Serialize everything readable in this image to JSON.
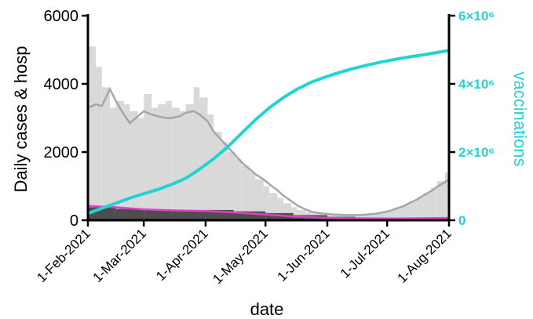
{
  "chart_data": {
    "type": "bar",
    "xlabel": "date",
    "ylabel": "Daily cases & hosp",
    "y2label": "vaccinations",
    "x_start": "2021-02-01",
    "x_end": "2021-08-01",
    "xtick_labels": [
      "1-Feb-2021",
      "1-Mar-2021",
      "1-Apr-2021",
      "1-May-2021",
      "1-Jun-2021",
      "1-Jul-2021",
      "1-Aug-2021"
    ],
    "xtick_dates": [
      "2021-02-01",
      "2021-03-01",
      "2021-04-01",
      "2021-05-01",
      "2021-06-01",
      "2021-07-01",
      "2021-08-01"
    ],
    "ylim": [
      0,
      6000
    ],
    "yticks": [
      0,
      2000,
      4000,
      6000
    ],
    "ytick_labels": [
      "0",
      "2000",
      "4000",
      "6000"
    ],
    "y2lim": [
      0,
      6000000
    ],
    "y2ticks": [
      0,
      2000000,
      4000000,
      6000000
    ],
    "y2tick_labels": [
      "0",
      "2×10⁶",
      "4×10⁶",
      "6×10⁶"
    ],
    "grid": false,
    "colors": {
      "cases_bars": "#d9d9d9",
      "cases_avg": "#a6a6a6",
      "hosp_bars": "#4d4d4d",
      "hosp_line": "#e040c8",
      "vaccinations": "#22d3d3",
      "axis": "#000000"
    },
    "series": [
      {
        "kind": "bars",
        "axis": "left",
        "x": [
          "2021-02-01",
          "2021-02-05",
          "2021-02-08",
          "2021-02-12",
          "2021-02-15",
          "2021-02-19",
          "2021-02-22",
          "2021-02-26",
          "2021-03-01",
          "2021-03-05",
          "2021-03-08",
          "2021-03-12",
          "2021-03-15",
          "2021-03-19",
          "2021-03-22",
          "2021-03-26",
          "2021-03-29",
          "2021-04-02",
          "2021-04-05",
          "2021-04-09",
          "2021-04-12",
          "2021-04-16",
          "2021-04-19",
          "2021-04-23",
          "2021-04-26",
          "2021-04-30",
          "2021-05-03",
          "2021-05-07",
          "2021-05-10",
          "2021-05-14",
          "2021-05-17",
          "2021-05-21",
          "2021-05-24",
          "2021-05-28",
          "2021-05-31",
          "2021-06-04",
          "2021-06-07",
          "2021-06-11",
          "2021-06-14",
          "2021-06-18",
          "2021-06-21",
          "2021-06-25",
          "2021-06-28",
          "2021-07-02",
          "2021-07-05",
          "2021-07-09",
          "2021-07-12",
          "2021-07-16",
          "2021-07-19",
          "2021-07-23",
          "2021-07-26",
          "2021-07-30",
          "2021-08-01"
        ],
        "values": [
          5100,
          4500,
          3900,
          3300,
          3500,
          3400,
          3200,
          3000,
          3700,
          3300,
          3400,
          3500,
          3300,
          3200,
          3400,
          3900,
          3600,
          3100,
          2600,
          2300,
          2000,
          1800,
          1600,
          1400,
          1200,
          1000,
          800,
          650,
          500,
          380,
          300,
          240,
          200,
          180,
          170,
          160,
          155,
          150,
          150,
          160,
          180,
          200,
          250,
          310,
          380,
          460,
          560,
          680,
          800,
          950,
          1150,
          1400,
          1550
        ]
      },
      {
        "kind": "line",
        "axis": "left",
        "x": [
          "2021-02-01",
          "2021-02-05",
          "2021-02-08",
          "2021-02-12",
          "2021-02-15",
          "2021-02-19",
          "2021-02-22",
          "2021-02-26",
          "2021-03-01",
          "2021-03-05",
          "2021-03-08",
          "2021-03-12",
          "2021-03-15",
          "2021-03-19",
          "2021-03-22",
          "2021-03-26",
          "2021-03-29",
          "2021-04-02",
          "2021-04-05",
          "2021-04-09",
          "2021-04-12",
          "2021-04-16",
          "2021-04-19",
          "2021-04-23",
          "2021-04-26",
          "2021-04-30",
          "2021-05-03",
          "2021-05-07",
          "2021-05-10",
          "2021-05-14",
          "2021-05-17",
          "2021-05-21",
          "2021-05-24",
          "2021-05-28",
          "2021-05-31",
          "2021-06-04",
          "2021-06-07",
          "2021-06-11",
          "2021-06-14",
          "2021-06-18",
          "2021-06-21",
          "2021-06-25",
          "2021-06-28",
          "2021-07-02",
          "2021-07-05",
          "2021-07-09",
          "2021-07-12",
          "2021-07-16",
          "2021-07-19",
          "2021-07-23",
          "2021-07-26",
          "2021-07-30",
          "2021-08-01"
        ],
        "values": [
          3300,
          3400,
          3350,
          3850,
          3500,
          3100,
          2850,
          3050,
          3200,
          3100,
          3050,
          3000,
          3000,
          3050,
          3150,
          3200,
          3100,
          2900,
          2600,
          2350,
          2150,
          1900,
          1700,
          1500,
          1350,
          1200,
          1050,
          880,
          720,
          560,
          430,
          320,
          250,
          210,
          190,
          170,
          160,
          150,
          150,
          155,
          170,
          190,
          220,
          270,
          330,
          410,
          500,
          610,
          720,
          850,
          980,
          1120,
          1200
        ]
      },
      {
        "kind": "bars",
        "axis": "left",
        "x": [
          "2021-02-01",
          "2021-02-15",
          "2021-03-01",
          "2021-03-15",
          "2021-04-01",
          "2021-04-15",
          "2021-05-01",
          "2021-05-15",
          "2021-06-01",
          "2021-06-15",
          "2021-07-01",
          "2021-07-15",
          "2021-08-01"
        ],
        "values": [
          380,
          330,
          300,
          290,
          300,
          260,
          210,
          150,
          100,
          70,
          60,
          60,
          70
        ]
      },
      {
        "kind": "line",
        "axis": "left",
        "x": [
          "2021-02-01",
          "2021-02-15",
          "2021-03-01",
          "2021-03-15",
          "2021-04-01",
          "2021-04-15",
          "2021-05-01",
          "2021-05-15",
          "2021-06-01",
          "2021-06-15",
          "2021-07-01",
          "2021-07-15",
          "2021-08-01"
        ],
        "values": [
          420,
          380,
          320,
          290,
          270,
          230,
          170,
          110,
          70,
          55,
          50,
          55,
          70
        ]
      },
      {
        "kind": "line",
        "axis": "right",
        "x": [
          "2021-02-01",
          "2021-02-08",
          "2021-02-15",
          "2021-02-22",
          "2021-03-01",
          "2021-03-08",
          "2021-03-15",
          "2021-03-22",
          "2021-03-29",
          "2021-04-05",
          "2021-04-12",
          "2021-04-19",
          "2021-04-26",
          "2021-05-03",
          "2021-05-10",
          "2021-05-17",
          "2021-05-24",
          "2021-05-31",
          "2021-06-07",
          "2021-06-14",
          "2021-06-21",
          "2021-06-28",
          "2021-07-05",
          "2021-07-12",
          "2021-07-19",
          "2021-07-26",
          "2021-08-01"
        ],
        "values": [
          200000,
          350000,
          500000,
          650000,
          780000,
          900000,
          1050000,
          1230000,
          1500000,
          1800000,
          2150000,
          2550000,
          2950000,
          3300000,
          3600000,
          3850000,
          4050000,
          4200000,
          4330000,
          4450000,
          4550000,
          4640000,
          4720000,
          4790000,
          4850000,
          4920000,
          4980000
        ]
      }
    ]
  }
}
